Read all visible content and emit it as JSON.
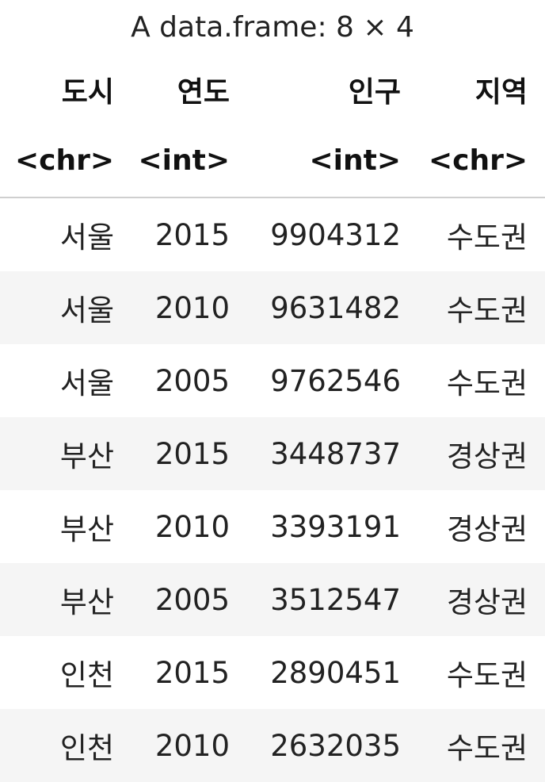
{
  "caption": "A data.frame: 8 × 4",
  "columns": [
    {
      "name": "도시",
      "type": "<chr>"
    },
    {
      "name": "연도",
      "type": "<int>"
    },
    {
      "name": "인구",
      "type": "<int>"
    },
    {
      "name": "지역",
      "type": "<chr>"
    }
  ],
  "rows": [
    [
      "서울",
      "2015",
      "9904312",
      "수도권"
    ],
    [
      "서울",
      "2010",
      "9631482",
      "수도권"
    ],
    [
      "서울",
      "2005",
      "9762546",
      "수도권"
    ],
    [
      "부산",
      "2015",
      "3448737",
      "경상권"
    ],
    [
      "부산",
      "2010",
      "3393191",
      "경상권"
    ],
    [
      "부산",
      "2005",
      "3512547",
      "경상권"
    ],
    [
      "인천",
      "2015",
      "2890451",
      "수도권"
    ],
    [
      "인천",
      "2010",
      "2632035",
      "수도권"
    ]
  ]
}
